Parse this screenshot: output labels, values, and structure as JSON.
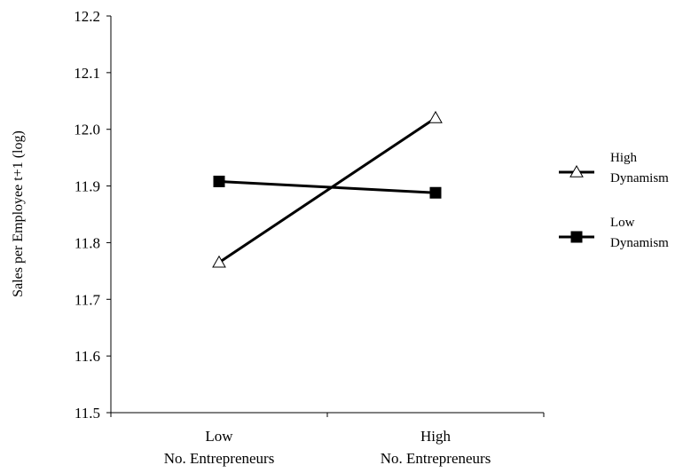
{
  "chart_data": {
    "type": "line",
    "categories": [
      [
        "Low",
        "No. Entrepreneurs"
      ],
      [
        "High",
        "No. Entrepreneurs"
      ]
    ],
    "series": [
      {
        "name": "High Dynamism",
        "legend_lines": [
          "High",
          "Dynamism"
        ],
        "marker": "open-triangle",
        "values": [
          11.765,
          12.02
        ]
      },
      {
        "name": "Low Dynamism",
        "legend_lines": [
          "Low",
          "Dynamism"
        ],
        "marker": "filled-square",
        "values": [
          11.908,
          11.888
        ]
      }
    ],
    "y_ticks": [
      "11.5",
      "11.6",
      "11.7",
      "11.8",
      "11.9",
      "12.0",
      "12.1",
      "12.2"
    ],
    "ylim": [
      11.5,
      12.2
    ],
    "ylabel": "Sales per Employee t+1 (log)",
    "xlabel": "",
    "title": "",
    "grid": false,
    "legend_position": "right",
    "colors": {
      "line": "#000000",
      "background": "#ffffff"
    }
  }
}
